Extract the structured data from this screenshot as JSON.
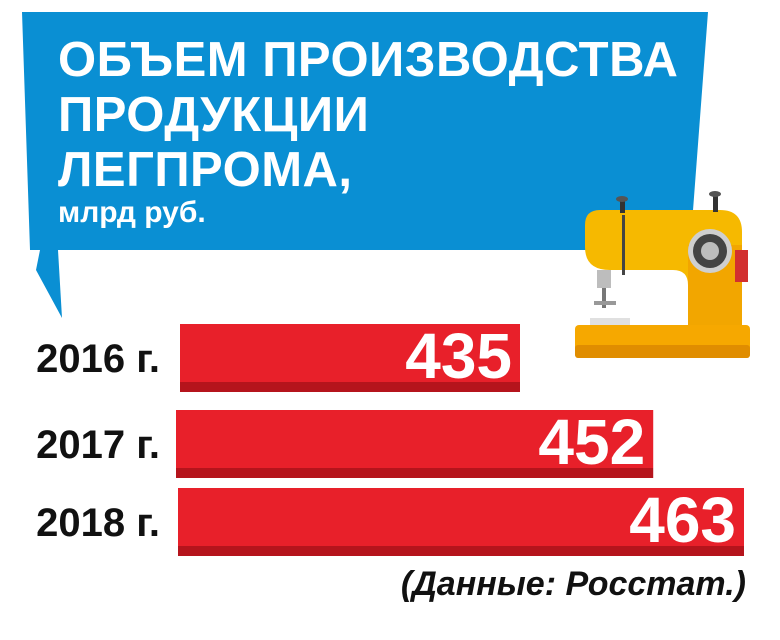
{
  "chart_data": {
    "type": "bar",
    "orientation": "horizontal",
    "title_lines": [
      "ОБЪЕМ ПРОИЗВОДСТВА",
      "ПРОДУКЦИИ",
      "ЛЕГПРОМА,"
    ],
    "subtitle": "млрд руб.",
    "categories": [
      "2016 г.",
      "2017 г.",
      "2018 г."
    ],
    "values": [
      435,
      452,
      463
    ],
    "value_labels": [
      "435",
      "452",
      "463"
    ],
    "source": "(Данные: Росстат.)",
    "grid": false,
    "legend": "none"
  },
  "colors": {
    "banner": "#0a8fd3",
    "bar": "#e8202a",
    "bar_shadow": "#b5141c",
    "text": "#111111"
  },
  "icons": [
    "sewing-machine-icon"
  ]
}
